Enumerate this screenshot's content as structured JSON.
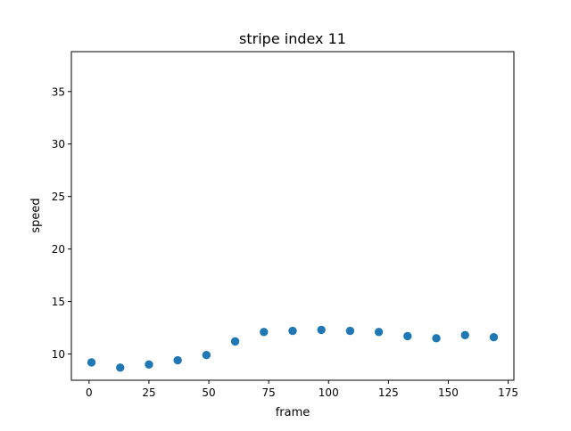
{
  "chart_data": {
    "type": "scatter",
    "title": "stripe index 11",
    "xlabel": "frame",
    "ylabel": "speed",
    "xlim": [
      -7.4,
      177.4
    ],
    "ylim": [
      7.5,
      38.8
    ],
    "xticks": [
      0,
      25,
      50,
      75,
      100,
      125,
      150,
      175
    ],
    "yticks": [
      10,
      15,
      20,
      25,
      30,
      35
    ],
    "grid": false,
    "marker_color": "#1f77b4",
    "series": [
      {
        "x": [
          1,
          13,
          25,
          37,
          49,
          61,
          73,
          85,
          97,
          109,
          121,
          133,
          145,
          157,
          169
        ],
        "y": [
          9.2,
          8.7,
          9.0,
          9.4,
          9.9,
          11.2,
          12.1,
          12.2,
          12.3,
          12.2,
          12.1,
          11.7,
          11.5,
          11.8,
          11.6
        ]
      }
    ]
  }
}
